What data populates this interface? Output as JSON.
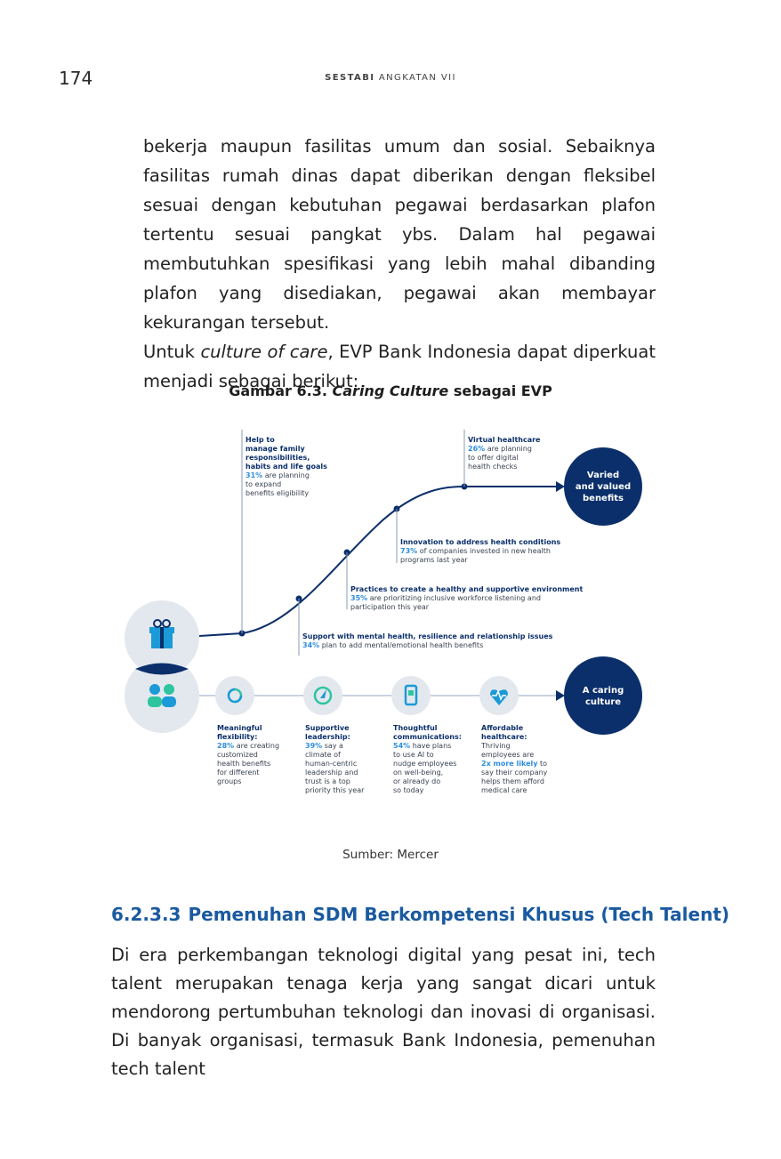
{
  "header": {
    "page_number": "174",
    "running_title_bold": "SESTABI",
    "running_title_rest": " ANGKATAN VII"
  },
  "intro": {
    "p1": "bekerja maupun fasilitas umum dan sosial. Sebaiknya fasilitas rumah dinas dapat diberikan dengan fleksibel sesuai dengan kebutuhan pegawai berdasarkan plafon tertentu sesuai pangkat ybs. Dalam hal pegawai membutuhkan spesifikasi yang lebih mahal dibanding plafon yang disediakan, pegawai akan membayar kekurangan tersebut.",
    "p2_pre": "Untuk ",
    "p2_italic": "culture of care",
    "p2_post": ", EVP Bank Indonesia dapat diperkuat menjadi sebagai berikut:"
  },
  "figure": {
    "caption_pre": "Gambar 6.3. ",
    "caption_italic": "Caring Culture",
    "caption_post": " sebagai EVP",
    "source": "Sumber: Mercer",
    "top_goal": [
      "Varied",
      "and valued",
      "benefits"
    ],
    "bottom_goal": [
      "A caring",
      "culture"
    ],
    "milestones": [
      {
        "lines": [
          "Help to",
          "manage family",
          "responsibilities,",
          "habits and life goals"
        ],
        "stat": "31%",
        "stat_rest": " are planning",
        "more": [
          "to expand",
          "benefits eligibility"
        ]
      },
      {
        "lines": [
          "Support with mental health, resilience and relationship issues"
        ],
        "stat": "34%",
        "stat_rest": " plan to add mental/emotional health benefits",
        "more": []
      },
      {
        "lines": [
          "Practices to create a healthy and supportive environment"
        ],
        "stat": "35%",
        "stat_rest": " are prioritizing inclusive workforce listening and",
        "more": [
          "participation this year"
        ]
      },
      {
        "lines": [
          "Innovation to address health conditions"
        ],
        "stat": "73%",
        "stat_rest": " of companies invested in new health",
        "more": [
          "programs last year"
        ]
      },
      {
        "lines": [
          "Virtual healthcare"
        ],
        "stat": "26%",
        "stat_rest": " are planning",
        "more": [
          "to offer digital",
          "health checks"
        ]
      }
    ],
    "pillars": [
      {
        "icon": "loop-icon",
        "title": [
          "Meaningful",
          "flexibility:"
        ],
        "stat": "28%",
        "stat_rest": " are creating",
        "more": [
          "customized",
          "health benefits",
          "for different",
          "groups"
        ]
      },
      {
        "icon": "compass-icon",
        "title": [
          "Supportive",
          "leadership:"
        ],
        "stat": "39%",
        "stat_rest": " say a",
        "more": [
          "climate of",
          "human-centric",
          "leadership and",
          "trust is a top",
          "priority this year"
        ]
      },
      {
        "icon": "phone-icon",
        "title": [
          "Thoughtful",
          "communications:"
        ],
        "stat": "54%",
        "stat_rest": " have plans",
        "more": [
          "to use AI to",
          "nudge employees",
          "on well-being,",
          "or already do",
          "so today"
        ]
      },
      {
        "icon": "heart-pulse-icon",
        "title": [
          "Affordable",
          "healthcare:"
        ],
        "stat": "",
        "stat_rest": "Thriving",
        "more": [
          "employees are",
          "2x more likely to",
          "say their company",
          "helps them afford",
          "medical care"
        ]
      }
    ]
  },
  "section": {
    "number": "6.2.3.3",
    "title": "Pemenuhan SDM Berkompetensi Khusus (Tech Talent)",
    "body": "Di era perkembangan teknologi digital yang pesat ini, tech talent merupakan tenaga kerja yang sangat dicari untuk mendorong pertumbuhan teknologi dan inovasi di organisasi. Di banyak organisasi, termasuk Bank Indonesia, pemenuhan tech talent"
  },
  "colors": {
    "navy": "#0b2f6b",
    "accent_blue": "#2f8de0",
    "circle_gray": "#e3e8ee",
    "heading_blue": "#1a5aa0"
  }
}
